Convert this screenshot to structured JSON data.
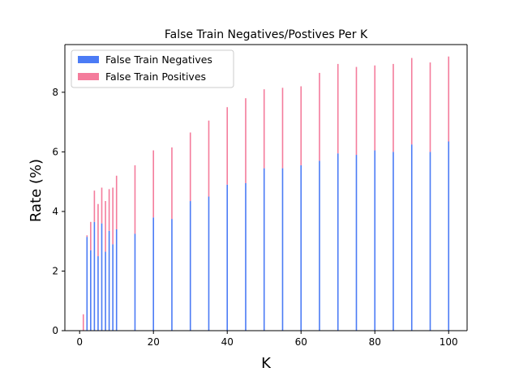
{
  "chart_data": {
    "type": "bar",
    "stacked": true,
    "title": "False Train Negatives/Postives Per K",
    "xlabel": "K",
    "ylabel": "Rate (%)",
    "xlim": [
      -4,
      105
    ],
    "ylim": [
      0,
      9.6
    ],
    "xticks": [
      0,
      20,
      40,
      60,
      80,
      100
    ],
    "yticks": [
      0,
      2,
      4,
      6,
      8
    ],
    "legend_position": "upper-left",
    "grid": false,
    "x": [
      1,
      2,
      3,
      4,
      5,
      6,
      7,
      8,
      9,
      10,
      15,
      20,
      25,
      30,
      35,
      40,
      45,
      50,
      55,
      60,
      65,
      70,
      75,
      80,
      85,
      90,
      95,
      100
    ],
    "series": [
      {
        "name": "False Train Negatives",
        "color": "#4b7bf5",
        "values": [
          0.0,
          3.15,
          2.7,
          3.65,
          2.5,
          3.6,
          2.65,
          3.35,
          2.9,
          3.4,
          3.25,
          3.8,
          3.75,
          4.35,
          4.5,
          4.9,
          4.95,
          5.45,
          5.45,
          5.55,
          5.7,
          5.95,
          5.9,
          6.05,
          6.0,
          6.25,
          6.0,
          6.35
        ]
      },
      {
        "name": "False Train Positives",
        "color": "#f47c9c",
        "values": [
          0.55,
          0.05,
          0.95,
          1.05,
          1.75,
          1.2,
          1.7,
          1.4,
          1.9,
          1.8,
          2.3,
          2.25,
          2.4,
          2.3,
          2.55,
          2.6,
          2.85,
          2.65,
          2.7,
          2.65,
          2.95,
          3.0,
          2.95,
          2.85,
          2.95,
          2.9,
          3.0,
          2.85
        ]
      }
    ]
  }
}
